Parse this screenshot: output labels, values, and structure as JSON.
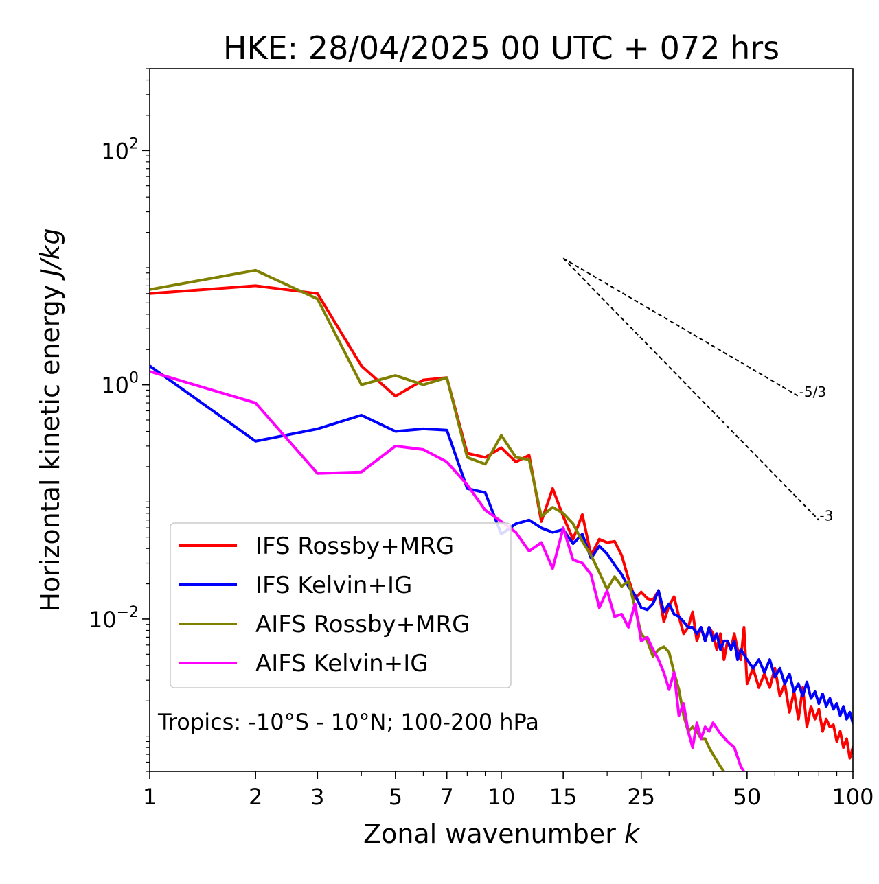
{
  "chart_data": {
    "type": "line",
    "title": "HKE: 28/04/2025 00 UTC + 072 hrs",
    "xlabel_text": "Zonal wavenumber ",
    "xlabel_var": "k",
    "ylabel_text": "Horizontal kinetic energy ",
    "ylabel_unit": "J/kg",
    "xscale": "log",
    "yscale": "log",
    "xlim": [
      1,
      100
    ],
    "ylim": [
      0.0005,
      500
    ],
    "x_ticks": [
      1,
      2,
      3,
      5,
      7,
      10,
      15,
      25,
      50,
      100
    ],
    "x_tick_labels": [
      "1",
      "2",
      "3",
      "5",
      "7",
      "10",
      "15",
      "25",
      "50",
      "100"
    ],
    "y_ticks": [
      {
        "value": 100,
        "base": "10",
        "exp": "2"
      },
      {
        "value": 1,
        "base": "10",
        "exp": "0"
      },
      {
        "value": 0.01,
        "base": "10",
        "exp": "−2"
      }
    ],
    "annotation": "Tropics: -10°S - 10°N; 100-200 hPa",
    "reference_lines": [
      {
        "label": "-5/3",
        "x": [
          15,
          70
        ],
        "y": [
          12,
          0.8
        ]
      },
      {
        "label": "-3",
        "x": [
          15,
          80
        ],
        "y": [
          12,
          0.07
        ]
      }
    ],
    "legend_position": "lower left",
    "series": [
      {
        "name": "IFS Rossby+MRG",
        "color": "#ff0000",
        "points": [
          [
            1,
            6.0
          ],
          [
            2,
            7.0
          ],
          [
            3,
            6.0
          ],
          [
            4,
            1.45
          ],
          [
            5,
            0.8
          ],
          [
            6,
            1.1
          ],
          [
            7,
            1.15
          ],
          [
            8,
            0.26
          ],
          [
            9,
            0.24
          ],
          [
            10,
            0.29
          ],
          [
            11,
            0.22
          ],
          [
            12,
            0.25
          ],
          [
            13,
            0.068
          ],
          [
            14,
            0.13
          ],
          [
            15,
            0.075
          ],
          [
            16,
            0.048
          ],
          [
            17,
            0.078
          ],
          [
            18,
            0.035
          ],
          [
            19,
            0.048
          ],
          [
            20,
            0.045
          ],
          [
            21,
            0.046
          ],
          [
            22,
            0.035
          ],
          [
            23,
            0.022
          ],
          [
            24,
            0.015
          ],
          [
            25,
            0.017
          ],
          [
            26,
            0.015
          ],
          [
            27,
            0.0145
          ],
          [
            28,
            0.0175
          ],
          [
            29,
            0.0095
          ],
          [
            30,
            0.013
          ],
          [
            31,
            0.0155
          ],
          [
            32,
            0.0105
          ],
          [
            33,
            0.0075
          ],
          [
            34,
            0.0085
          ],
          [
            35,
            0.0115
          ],
          [
            36,
            0.0065
          ],
          [
            37,
            0.0085
          ],
          [
            38,
            0.0065
          ],
          [
            39,
            0.0085
          ],
          [
            40,
            0.0075
          ],
          [
            41,
            0.0055
          ],
          [
            42,
            0.0075
          ],
          [
            43,
            0.0045
          ],
          [
            44,
            0.0065
          ],
          [
            45,
            0.0055
          ],
          [
            46,
            0.0075
          ],
          [
            47,
            0.0055
          ],
          [
            48,
            0.0045
          ],
          [
            49,
            0.0085
          ],
          [
            50,
            0.0028
          ],
          [
            52,
            0.0038
          ],
          [
            54,
            0.0026
          ],
          [
            56,
            0.0034
          ],
          [
            58,
            0.0026
          ],
          [
            60,
            0.0038
          ],
          [
            62,
            0.0022
          ],
          [
            64,
            0.0028
          ],
          [
            66,
            0.0016
          ],
          [
            68,
            0.0024
          ],
          [
            70,
            0.0014
          ],
          [
            72,
            0.0026
          ],
          [
            74,
            0.0012
          ],
          [
            76,
            0.0018
          ],
          [
            78,
            0.0014
          ],
          [
            80,
            0.0017
          ],
          [
            82,
            0.0011
          ],
          [
            84,
            0.0014
          ],
          [
            86,
            0.0012
          ],
          [
            88,
            0.00125
          ],
          [
            90,
            0.0009
          ],
          [
            92,
            0.0011
          ],
          [
            94,
            0.0008
          ],
          [
            96,
            0.00095
          ],
          [
            98,
            0.00065
          ],
          [
            100,
            0.0008
          ]
        ]
      },
      {
        "name": "IFS Kelvin+IG",
        "color": "#0000ff",
        "points": [
          [
            1,
            1.45
          ],
          [
            2,
            0.33
          ],
          [
            3,
            0.42
          ],
          [
            4,
            0.55
          ],
          [
            5,
            0.4
          ],
          [
            6,
            0.42
          ],
          [
            7,
            0.41
          ],
          [
            8,
            0.13
          ],
          [
            9,
            0.12
          ],
          [
            10,
            0.053
          ],
          [
            11,
            0.065
          ],
          [
            12,
            0.07
          ],
          [
            13,
            0.06
          ],
          [
            14,
            0.055
          ],
          [
            15,
            0.058
          ],
          [
            16,
            0.044
          ],
          [
            17,
            0.053
          ],
          [
            18,
            0.033
          ],
          [
            19,
            0.042
          ],
          [
            20,
            0.036
          ],
          [
            21,
            0.029
          ],
          [
            22,
            0.024
          ],
          [
            23,
            0.019
          ],
          [
            24,
            0.016
          ],
          [
            25,
            0.0125
          ],
          [
            26,
            0.012
          ],
          [
            27,
            0.0135
          ],
          [
            28,
            0.0175
          ],
          [
            29,
            0.0115
          ],
          [
            30,
            0.0135
          ],
          [
            31,
            0.011
          ],
          [
            32,
            0.0105
          ],
          [
            33,
            0.0095
          ],
          [
            34,
            0.0085
          ],
          [
            35,
            0.0085
          ],
          [
            36,
            0.0075
          ],
          [
            37,
            0.0085
          ],
          [
            38,
            0.0065
          ],
          [
            39,
            0.0085
          ],
          [
            40,
            0.0065
          ],
          [
            41,
            0.0075
          ],
          [
            42,
            0.0055
          ],
          [
            43,
            0.0065
          ],
          [
            44,
            0.0065
          ],
          [
            45,
            0.0055
          ],
          [
            46,
            0.0065
          ],
          [
            47,
            0.0045
          ],
          [
            48,
            0.0055
          ],
          [
            50,
            0.0045
          ],
          [
            52,
            0.0038
          ],
          [
            54,
            0.0045
          ],
          [
            56,
            0.0035
          ],
          [
            58,
            0.0045
          ],
          [
            60,
            0.0032
          ],
          [
            62,
            0.0038
          ],
          [
            64,
            0.0028
          ],
          [
            66,
            0.0034
          ],
          [
            68,
            0.0024
          ],
          [
            70,
            0.0028
          ],
          [
            72,
            0.0022
          ],
          [
            74,
            0.0029
          ],
          [
            76,
            0.0021
          ],
          [
            78,
            0.0024
          ],
          [
            80,
            0.0019
          ],
          [
            82,
            0.0023
          ],
          [
            84,
            0.0018
          ],
          [
            86,
            0.0021
          ],
          [
            88,
            0.0017
          ],
          [
            90,
            0.0019
          ],
          [
            92,
            0.0015
          ],
          [
            94,
            0.0018
          ],
          [
            96,
            0.0014
          ],
          [
            98,
            0.0016
          ],
          [
            100,
            0.0013
          ]
        ]
      },
      {
        "name": "AIFS Rossby+MRG",
        "color": "#808000",
        "points": [
          [
            1,
            6.5
          ],
          [
            2,
            9.5
          ],
          [
            3,
            5.4
          ],
          [
            4,
            1.0
          ],
          [
            5,
            1.2
          ],
          [
            6,
            1.0
          ],
          [
            7,
            1.15
          ],
          [
            8,
            0.24
          ],
          [
            9,
            0.21
          ],
          [
            10,
            0.37
          ],
          [
            11,
            0.24
          ],
          [
            12,
            0.23
          ],
          [
            13,
            0.075
          ],
          [
            14,
            0.09
          ],
          [
            15,
            0.08
          ],
          [
            16,
            0.065
          ],
          [
            17,
            0.046
          ],
          [
            18,
            0.035
          ],
          [
            19,
            0.025
          ],
          [
            20,
            0.018
          ],
          [
            21,
            0.023
          ],
          [
            22,
            0.019
          ],
          [
            23,
            0.021
          ],
          [
            24,
            0.0125
          ],
          [
            25,
            0.0075
          ],
          [
            26,
            0.0065
          ],
          [
            27,
            0.0048
          ],
          [
            28,
            0.0055
          ],
          [
            29,
            0.0058
          ],
          [
            30,
            0.0052
          ],
          [
            31,
            0.0035
          ],
          [
            32,
            0.0025
          ],
          [
            33,
            0.0015
          ],
          [
            34,
            0.0011
          ],
          [
            35,
            0.0012
          ],
          [
            36,
            0.0011
          ],
          [
            37,
            0.00095
          ],
          [
            38,
            0.00095
          ],
          [
            39,
            0.0008
          ],
          [
            40,
            0.0007
          ],
          [
            42,
            0.00055
          ],
          [
            44,
            0.00045
          ],
          [
            46,
            0.00042
          ],
          [
            48,
            0.0003
          ],
          [
            50,
            0.00028
          ]
        ]
      },
      {
        "name": "AIFS Kelvin+IG",
        "color": "#ff00ff",
        "points": [
          [
            1,
            1.3
          ],
          [
            2,
            0.7
          ],
          [
            3,
            0.175
          ],
          [
            4,
            0.18
          ],
          [
            5,
            0.3
          ],
          [
            6,
            0.28
          ],
          [
            7,
            0.22
          ],
          [
            8,
            0.14
          ],
          [
            9,
            0.085
          ],
          [
            10,
            0.068
          ],
          [
            11,
            0.055
          ],
          [
            12,
            0.038
          ],
          [
            13,
            0.045
          ],
          [
            14,
            0.027
          ],
          [
            15,
            0.06
          ],
          [
            16,
            0.032
          ],
          [
            17,
            0.03
          ],
          [
            18,
            0.024
          ],
          [
            19,
            0.0125
          ],
          [
            20,
            0.0175
          ],
          [
            21,
            0.0105
          ],
          [
            22,
            0.011
          ],
          [
            23,
            0.0085
          ],
          [
            24,
            0.0135
          ],
          [
            25,
            0.0065
          ],
          [
            26,
            0.007
          ],
          [
            27,
            0.0055
          ],
          [
            28,
            0.0045
          ],
          [
            29,
            0.0035
          ],
          [
            30,
            0.0025
          ],
          [
            31,
            0.0035
          ],
          [
            32,
            0.0015
          ],
          [
            33,
            0.0019
          ],
          [
            34,
            0.0011
          ],
          [
            35,
            0.0008
          ],
          [
            36,
            0.0013
          ],
          [
            37,
            0.00095
          ],
          [
            38,
            0.0012
          ],
          [
            39,
            0.0011
          ],
          [
            40,
            0.0013
          ],
          [
            42,
            0.00105
          ],
          [
            44,
            0.0009
          ],
          [
            46,
            0.0008
          ],
          [
            48,
            0.00055
          ],
          [
            50,
            0.00045
          ],
          [
            52,
            0.00035
          ],
          [
            54,
            0.0003
          ]
        ]
      }
    ]
  }
}
